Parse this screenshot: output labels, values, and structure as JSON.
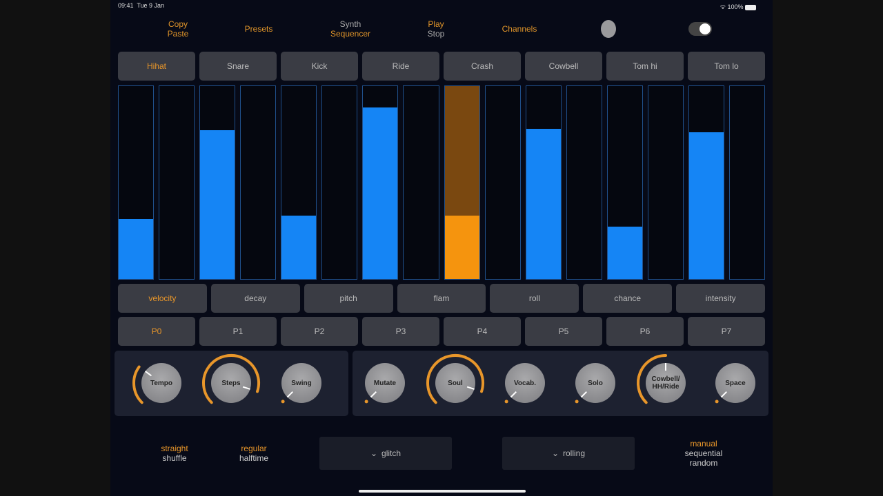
{
  "status": {
    "time": "09:41",
    "date": "Tue 9 Jan",
    "battery": "100%"
  },
  "toolbar": {
    "copy": "Copy",
    "paste": "Paste",
    "presets": "Presets",
    "synth": "Synth",
    "sequencer": "Sequencer",
    "play": "Play",
    "stop": "Stop",
    "channels": "Channels"
  },
  "instruments": [
    {
      "label": "Hihat",
      "selected": true
    },
    {
      "label": "Snare"
    },
    {
      "label": "Kick"
    },
    {
      "label": "Ride"
    },
    {
      "label": "Crash"
    },
    {
      "label": "Cowbell"
    },
    {
      "label": "Tom hi"
    },
    {
      "label": "Tom lo"
    }
  ],
  "bar_values": [
    0.31,
    0,
    0.77,
    0,
    0.33,
    0,
    0.89,
    0,
    0.33,
    0,
    0.78,
    0,
    0.27,
    0,
    0.76,
    0
  ],
  "selected_bar": 8,
  "params": [
    "velocity",
    "decay",
    "pitch",
    "flam",
    "roll",
    "chance",
    "intensity"
  ],
  "patterns": [
    "P0",
    "P1",
    "P2",
    "P3",
    "P4",
    "P5",
    "P6",
    "P7"
  ],
  "knobs": [
    {
      "label": "Tempo",
      "value": 0.3
    },
    {
      "label": "Steps",
      "value": 0.9
    },
    {
      "label": "Swing",
      "value": 0
    },
    {
      "label": "Mutate",
      "value": 0
    },
    {
      "label": "Soul",
      "value": 0.9
    },
    {
      "label": "Vocab.",
      "value": 0
    },
    {
      "label": "Solo",
      "value": 0
    },
    {
      "label": "Cowbell/ HH/Ride",
      "value": 0.5
    },
    {
      "label": "Space",
      "value": 0
    }
  ],
  "bottom": {
    "straight": "straight",
    "shuffle": "shuffle",
    "regular": "regular",
    "halftime": "halftime",
    "glitch": "glitch",
    "rolling": "rolling",
    "manual": "manual",
    "sequential": "sequential",
    "random": "random",
    "chevron": "⌄"
  },
  "accent": "#e8962a"
}
